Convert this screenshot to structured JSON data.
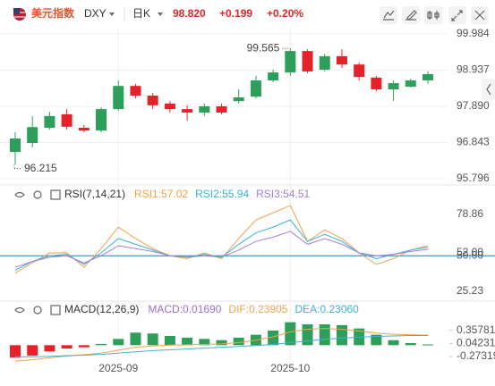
{
  "header": {
    "name": "美元指数",
    "symbol": "DXY",
    "period": "日K",
    "price": "98.820",
    "change": "+0.199",
    "change_pct": "+0.20%"
  },
  "chart_data": [
    {
      "type": "candlestick",
      "categories": [
        null,
        null,
        null,
        null,
        null,
        null,
        "2025-09",
        null,
        null,
        null,
        null,
        null,
        null,
        null,
        null,
        null,
        "2025-10",
        null,
        null,
        null,
        null,
        null,
        null,
        null,
        null
      ],
      "open": [
        96.57,
        96.83,
        97.27,
        97.66,
        97.27,
        97.19,
        97.81,
        98.48,
        98.2,
        97.97,
        97.81,
        97.71,
        97.89,
        98.04,
        98.17,
        98.64,
        98.87,
        99.49,
        98.95,
        99.34,
        99.1,
        98.72,
        98.38,
        98.46,
        98.64
      ],
      "high": [
        97.14,
        97.61,
        97.73,
        97.81,
        97.35,
        97.86,
        98.64,
        98.54,
        98.28,
        98.04,
        97.92,
        97.97,
        97.97,
        98.38,
        98.77,
        98.95,
        99.565,
        99.54,
        99.41,
        99.54,
        99.15,
        98.77,
        98.64,
        98.69,
        98.9
      ],
      "low": [
        96.215,
        96.7,
        97.22,
        97.22,
        97.14,
        97.14,
        97.76,
        98.12,
        97.81,
        97.71,
        97.48,
        97.61,
        97.66,
        97.97,
        98.12,
        98.59,
        98.77,
        98.85,
        98.9,
        99.0,
        98.64,
        98.33,
        98.05,
        98.43,
        98.54
      ],
      "close": [
        96.96,
        97.29,
        97.61,
        97.3,
        97.19,
        97.81,
        98.48,
        98.2,
        97.92,
        97.81,
        97.71,
        97.89,
        97.71,
        98.15,
        98.64,
        98.87,
        99.49,
        98.9,
        99.34,
        99.1,
        98.74,
        98.38,
        98.56,
        98.64,
        98.82
      ],
      "up_color": "#2e9e5b",
      "down_color": "#e5222a",
      "ylim": [
        95.667,
        100.139
      ],
      "yticks": [
        99.984,
        98.937,
        {
          "value": 97.89,
          "label": "97.890"
        },
        96.843,
        95.796
      ],
      "annotations": [
        {
          "text": "99.565",
          "index": 16
        },
        {
          "text": "96.215",
          "index": 0
        }
      ],
      "grid": true
    },
    {
      "type": "line",
      "title": "RSI(7,14,21)",
      "series": [
        {
          "name": "RSI1:57.02",
          "color": "#f0a24b",
          "values": [
            38,
            45,
            52,
            52,
            42,
            55,
            70,
            62,
            55,
            50,
            48,
            52,
            48,
            62,
            75,
            80,
            85,
            60,
            68,
            62,
            52,
            44,
            48,
            54,
            57.02
          ]
        },
        {
          "name": "RSI2:55.94",
          "color": "#3bb3d6",
          "values": [
            40,
            46,
            50,
            51,
            44,
            52,
            62,
            58,
            54,
            50,
            49,
            51,
            49,
            58,
            66,
            70,
            75,
            60,
            65,
            60,
            52,
            48,
            51,
            54,
            55.94
          ]
        },
        {
          "name": "RSI3:54.51",
          "color": "#a77fd8",
          "values": [
            42,
            46,
            49,
            50,
            45,
            50,
            57,
            55,
            53,
            50,
            49,
            50,
            49,
            54,
            60,
            63,
            67,
            58,
            62,
            58,
            52,
            50,
            51,
            53,
            54.51
          ]
        }
      ],
      "ylim": [
        19.6,
        86.3
      ],
      "yticks": [
        78.86,
        {
          "value": 52,
          "label": "52.00"
        },
        {
          "value": 50,
          "label": "50.00"
        },
        25.23
      ],
      "reference_color": "#2a7ab0"
    },
    {
      "type": "macd",
      "title": "MACD(12,26,9)",
      "series": [
        {
          "name": "MACD:0.01690",
          "color": "#9a6fd0",
          "up_color": "#2e9e5b",
          "down_color": "#e5222a",
          "values": [
            -0.3,
            -0.25,
            -0.15,
            -0.08,
            -0.05,
            0.03,
            0.15,
            0.3,
            0.28,
            0.22,
            0.18,
            0.15,
            0.12,
            0.18,
            0.25,
            0.35,
            0.55,
            0.5,
            0.5,
            0.48,
            0.4,
            0.25,
            0.12,
            0.05,
            0.0169
          ]
        },
        {
          "name": "DIF:0.23905",
          "color": "#f0a24b",
          "values": [
            -0.38,
            -0.35,
            -0.3,
            -0.26,
            -0.23,
            -0.19,
            -0.12,
            -0.05,
            -0.02,
            0.0,
            0.01,
            0.02,
            0.03,
            0.06,
            0.12,
            0.2,
            0.32,
            0.38,
            0.4,
            0.38,
            0.34,
            0.29,
            0.26,
            0.25,
            0.23905
          ]
        },
        {
          "name": "DEA:0.23060",
          "color": "#3bb3d6",
          "values": [
            -0.28,
            -0.28,
            -0.27,
            -0.25,
            -0.24,
            -0.22,
            -0.19,
            -0.16,
            -0.13,
            -0.11,
            -0.09,
            -0.07,
            -0.05,
            -0.03,
            -0.01,
            0.02,
            0.06,
            0.1,
            0.14,
            0.17,
            0.19,
            0.21,
            0.22,
            0.23,
            0.2306
          ]
        }
      ],
      "ylim": [
        -0.4,
        0.67
      ],
      "yticks": [
        0.35781,
        0.04231,
        -0.27319
      ]
    }
  ]
}
